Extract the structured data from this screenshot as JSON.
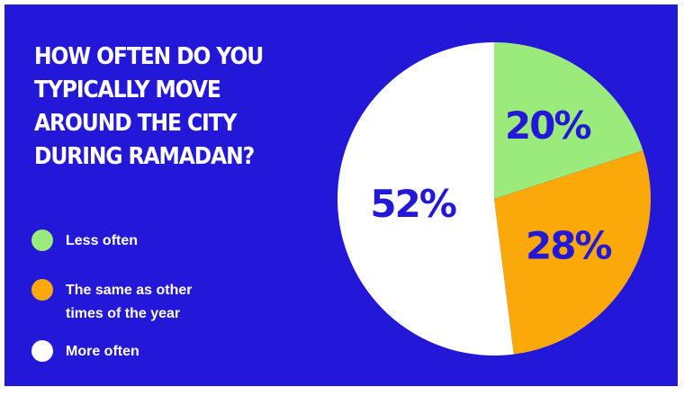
{
  "colors": {
    "background": "#2318d8",
    "less_often": "#9beb7c",
    "same": "#fba80a",
    "more_often": "#ffffff",
    "label_text": "#2318d8"
  },
  "chart_data": {
    "type": "pie",
    "title": "HOW OFTEN DO YOU TYPICALLY MOVE AROUND THE CITY DURING RAMADAN?",
    "legend_placement": "left",
    "categories": [
      "Less often",
      "The same as other times of the year",
      "More often"
    ],
    "values": [
      20,
      28,
      52
    ],
    "labels": [
      "20%",
      "28%",
      "52%"
    ]
  }
}
